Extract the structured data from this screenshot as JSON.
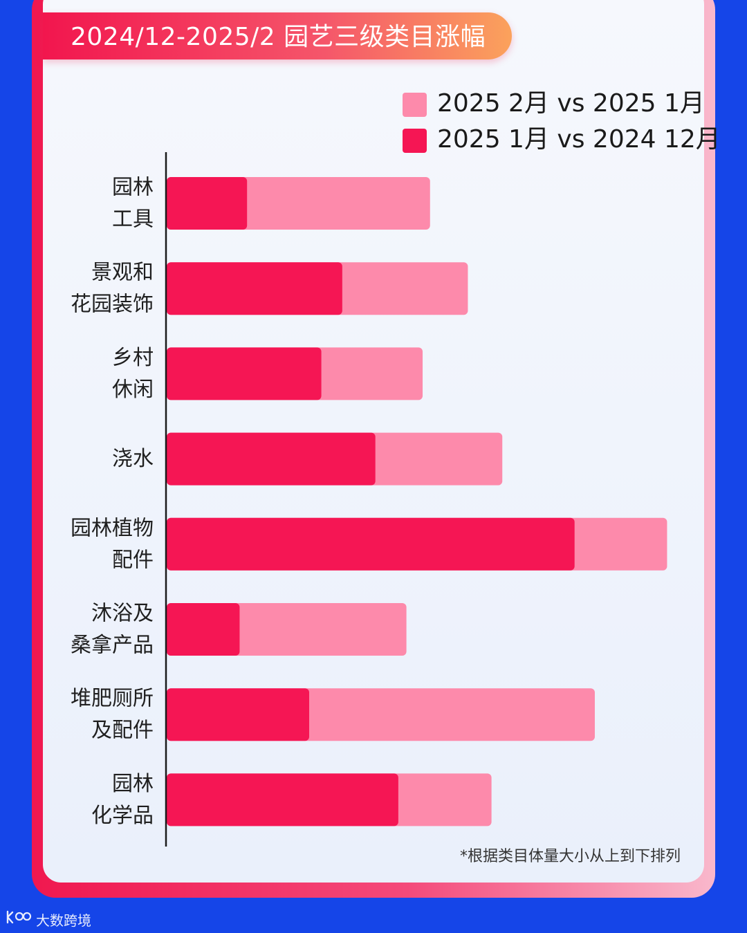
{
  "title": "2024/12-2025/2 园艺三级类目涨幅",
  "footnote": "*根据类目体量大小从上到下排列",
  "watermark": "大数跨境",
  "colors": {
    "light": "#fd8aab",
    "dark": "#f51654",
    "axis": "#1a1a1a",
    "label": "#1f1f1f"
  },
  "chart_data": {
    "type": "bar",
    "orientation": "horizontal",
    "stacked": "overlay",
    "categories": [
      [
        "园林",
        "工具"
      ],
      [
        "景观和",
        "花园装饰"
      ],
      [
        "乡村",
        "休闲"
      ],
      [
        "浇水"
      ],
      [
        "园林植物",
        "配件"
      ],
      [
        "沐浴及",
        "桑拿产品"
      ],
      [
        "堆肥厕所",
        "及配件"
      ],
      [
        "园林",
        "化学品"
      ]
    ],
    "series": [
      {
        "name": "2025 2月 vs 2025 1月",
        "values": [
          390,
          446,
          379,
          497,
          741,
          355,
          634,
          481
        ]
      },
      {
        "name": "2025 1月 vs 2024 12月",
        "values": [
          119,
          260,
          229,
          309,
          604,
          108,
          211,
          343
        ]
      }
    ],
    "legend": "top-right",
    "grid": false,
    "xaxis_visible": false,
    "xlim": [
      0,
      760
    ]
  }
}
